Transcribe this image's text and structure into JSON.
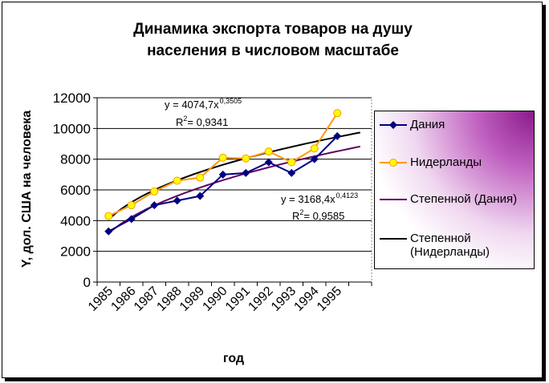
{
  "chart_data": {
    "type": "line",
    "title": [
      "Динамика экспорта товаров на душу",
      "населения в числовом масштабе"
    ],
    "xlabel": "год",
    "ylabel": "Y, дол. США на человека",
    "ylim": [
      0,
      12000
    ],
    "yticks": [
      "0",
      "2000",
      "4000",
      "6000",
      "8000",
      "10000",
      "12000"
    ],
    "categories": [
      "1985",
      "1986",
      "1987",
      "1988",
      "1989",
      "1990",
      "1991",
      "1992",
      "1993",
      "1994",
      "1995"
    ],
    "grid": true,
    "legend_position": "right",
    "series": [
      {
        "name": "Дания",
        "color": "#000080",
        "marker": "diamond",
        "values": [
          3300,
          4100,
          5000,
          5300,
          5600,
          7000,
          7100,
          7800,
          7100,
          8000,
          9500
        ]
      },
      {
        "name": "Нидерланды",
        "color": "#FF9900",
        "marker": "circle",
        "values": [
          4300,
          5000,
          5900,
          6600,
          6800,
          8100,
          8050,
          8500,
          7800,
          8700,
          11000
        ]
      }
    ],
    "trendlines": [
      {
        "name": "Степенной (Дания)",
        "color": "#600060",
        "a": 3168.4,
        "b": 0.4123,
        "equation": "y = 3168,4x",
        "exponent": "0,4123",
        "r2_label": "R",
        "r2_value": " = 0,9585"
      },
      {
        "name": "Степенной (Нидерланды)",
        "name_lines": [
          "Степенной",
          "(Нидерланды)"
        ],
        "color": "#000000",
        "a": 4074.7,
        "b": 0.3505,
        "equation": "y = 4074,7x",
        "exponent": "0,3505",
        "r2_label": "R",
        "r2_value": " = 0,9341"
      }
    ]
  }
}
